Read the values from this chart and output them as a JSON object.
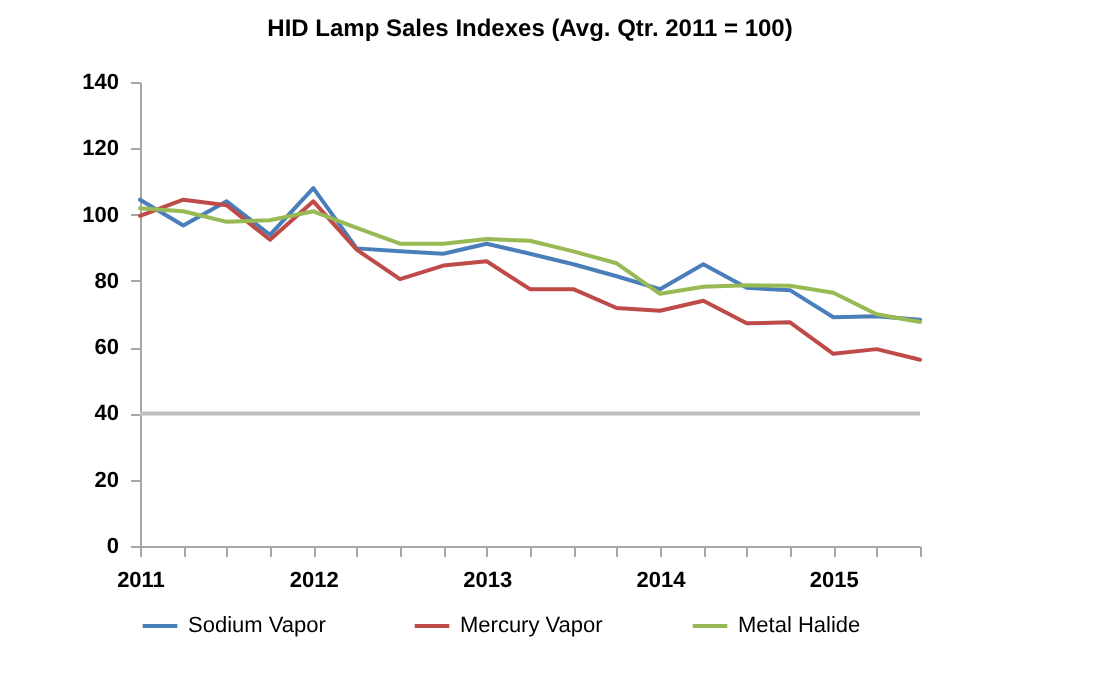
{
  "chart_data": {
    "type": "line",
    "title": "HID Lamp Sales Indexes (Avg. Qtr. 2011 = 100)",
    "categories": [
      "2011",
      null,
      null,
      null,
      "2012",
      null,
      null,
      null,
      "2013",
      null,
      null,
      null,
      "2014",
      null,
      null,
      null,
      "2015",
      null,
      null
    ],
    "series": [
      {
        "name": "Sodium Vapor",
        "color": "#4a7ebb",
        "values": [
          104.5,
          96.7,
          104,
          93.9,
          108,
          89.8,
          88.9,
          88.2,
          91.2,
          88.2,
          85,
          81.4,
          77.5,
          85,
          77.9,
          77.2,
          69,
          69.3,
          68.3
        ]
      },
      {
        "name": "Mercury Vapor",
        "color": "#be4b48",
        "values": [
          99.6,
          104.5,
          102.8,
          92.4,
          104,
          89.4,
          80.5,
          84.6,
          85.9,
          77.5,
          77.5,
          71.8,
          71,
          74,
          67.2,
          67.5,
          58,
          59.4,
          56.2
        ]
      },
      {
        "name": "Metal Halide",
        "color": "#98b954",
        "values": [
          101.9,
          101,
          97.8,
          98.3,
          101,
          96,
          91.2,
          91.2,
          92.6,
          92.1,
          88.9,
          85.3,
          76.1,
          78.2,
          78.7,
          78.5,
          76.4,
          69.9,
          67.6
        ]
      }
    ],
    "ylim": [
      0,
      140
    ],
    "yticks": [
      0,
      20,
      40,
      60,
      80,
      100,
      120,
      140
    ],
    "grid": false,
    "legend": "bottom",
    "marker": "none",
    "line_style": "solid",
    "ref_lines": [
      {
        "axis": "y",
        "value": 40,
        "color": "#bfbfbf"
      }
    ]
  }
}
